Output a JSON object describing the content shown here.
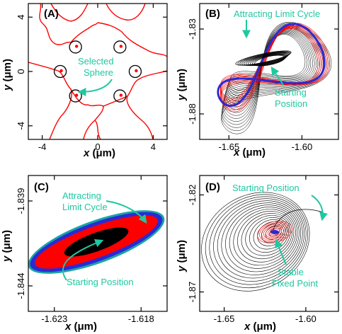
{
  "colors": {
    "accent": "#1fc8a0",
    "red": "#ff0000",
    "blue": "#2a2ad4",
    "black": "#000000",
    "teal": "#1aa5a5"
  },
  "chart_data": [
    {
      "panel": "(A)",
      "type": "line",
      "xlabel_var": "x",
      "xlabel_unit": " (μm)",
      "ylabel_var": "y",
      "ylabel_unit": " (μm)",
      "xlim": [
        -5,
        5
      ],
      "ylim": [
        -5,
        5
      ],
      "xticks": [
        -4,
        0,
        4
      ],
      "yticks": [
        -4,
        0,
        4
      ],
      "xtick_labels": [
        "-4",
        "0",
        "4"
      ],
      "ytick_labels": [
        "-4",
        "0",
        "4"
      ],
      "spheres": [
        {
          "x": -1.6,
          "y": 1.8
        },
        {
          "x": 1.6,
          "y": 1.8
        },
        {
          "x": -2.7,
          "y": 0.0
        },
        {
          "x": 2.7,
          "y": 0.0
        },
        {
          "x": -1.6,
          "y": -1.8
        },
        {
          "x": 1.6,
          "y": -1.8
        }
      ],
      "annotation": {
        "line1": "Selected",
        "line2": "Sphere"
      }
    },
    {
      "panel": "(B)",
      "type": "line",
      "xlabel_var": "x",
      "xlabel_unit": " (μm)",
      "ylabel_var": "y",
      "ylabel_unit": " (μm)",
      "xlim": [
        -1.67,
        -1.575
      ],
      "ylim": [
        -1.895,
        -1.815
      ],
      "xticks": [
        -1.65,
        -1.6
      ],
      "yticks": [
        -1.83,
        -1.88
      ],
      "xtick_labels": [
        "-1.65",
        "-1.60"
      ],
      "ytick_labels": [
        "-1.83",
        "-1.88"
      ],
      "annotations": {
        "limit_cycle": "Attracting Limit Cycle",
        "start_line1": "Starting",
        "start_line2": "Position"
      }
    },
    {
      "panel": "(C)",
      "type": "line",
      "xlabel_var": "x",
      "xlabel_unit": " (μm)",
      "ylabel_var": "y",
      "ylabel_unit": " (μm)",
      "xlim": [
        -1.6245,
        -1.6165
      ],
      "ylim": [
        -1.8455,
        -1.8375
      ],
      "xticks": [
        -1.623,
        -1.618
      ],
      "yticks": [
        -1.839,
        -1.844
      ],
      "xtick_labels": [
        "-1.623",
        "-1.618"
      ],
      "ytick_labels": [
        "-1.839",
        "-1.844"
      ],
      "annotations": {
        "limit_line1": "Attracting",
        "limit_line2": "Limit Cycle",
        "start": "Starting Position"
      }
    },
    {
      "panel": "(D)",
      "type": "line",
      "xlabel_var": "x",
      "xlabel_unit": " (μm)",
      "ylabel_var": "y",
      "ylabel_unit": " (μm)",
      "xlim": [
        -1.665,
        -1.58
      ],
      "ylim": [
        -1.88,
        -1.81
      ],
      "xticks": [
        -1.65,
        -1.6
      ],
      "yticks": [
        -1.82,
        -1.87
      ],
      "xtick_labels": [
        "-1.65",
        "-1.60"
      ],
      "ytick_labels": [
        "-1.82",
        "-1.87"
      ],
      "annotations": {
        "start": "Starting Position",
        "fixed_line1": "Stable",
        "fixed_line2": "Fixed Point"
      }
    }
  ]
}
